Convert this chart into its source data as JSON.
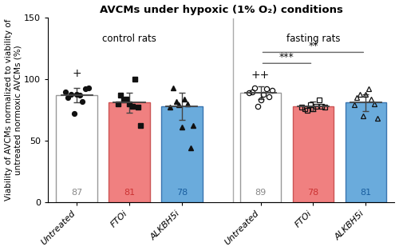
{
  "title": "AVCMs under hypoxic (1% O₂) conditions",
  "ylabel": "Viability of AVCMs normalized to viability of\nuntreated normoxic AVCMs (%)",
  "ylim": [
    0,
    150
  ],
  "yticks": [
    0,
    50,
    100,
    150
  ],
  "categories": [
    "Untreated",
    "FTOi",
    "ALKBH5i",
    "Untreated",
    "FTOi",
    "ALKBH5i"
  ],
  "bar_heights": [
    87,
    81,
    78,
    89,
    78,
    81
  ],
  "bar_colors": [
    "#ffffff",
    "#f08080",
    "#6aabdc",
    "#ffffff",
    "#f08080",
    "#6aabdc"
  ],
  "bar_edge_colors": [
    "#999999",
    "#cc5555",
    "#3a75b0",
    "#999999",
    "#cc5555",
    "#3a75b0"
  ],
  "bar_label_colors": [
    "#888888",
    "#cc3333",
    "#1a5fa0",
    "#888888",
    "#cc3333",
    "#1a5fa0"
  ],
  "error_bars": [
    6,
    8,
    11,
    5,
    4,
    7
  ],
  "scatter_data_ctrl_untreated": [
    88,
    92,
    90,
    93,
    87,
    72,
    82,
    85,
    88
  ],
  "scatter_data_ctrl_FTOi": [
    100,
    84,
    80,
    62,
    78,
    83,
    87,
    80,
    77
  ],
  "scatter_data_ctrl_ALKBH5i": [
    93,
    84,
    82,
    80,
    79,
    62,
    61,
    44,
    77
  ],
  "scatter_data_fast_untreated": [
    93,
    91,
    90,
    92,
    89,
    88,
    86,
    83,
    78
  ],
  "scatter_data_fast_FTOi": [
    83,
    79,
    78,
    78,
    76,
    76,
    77,
    75,
    77
  ],
  "scatter_data_fast_ALKBH5i": [
    92,
    88,
    88,
    85,
    84,
    80,
    79,
    68,
    70
  ],
  "background_color": "#ffffff",
  "title_fontsize": 9.5,
  "label_fontsize": 7.5,
  "tick_fontsize": 8
}
